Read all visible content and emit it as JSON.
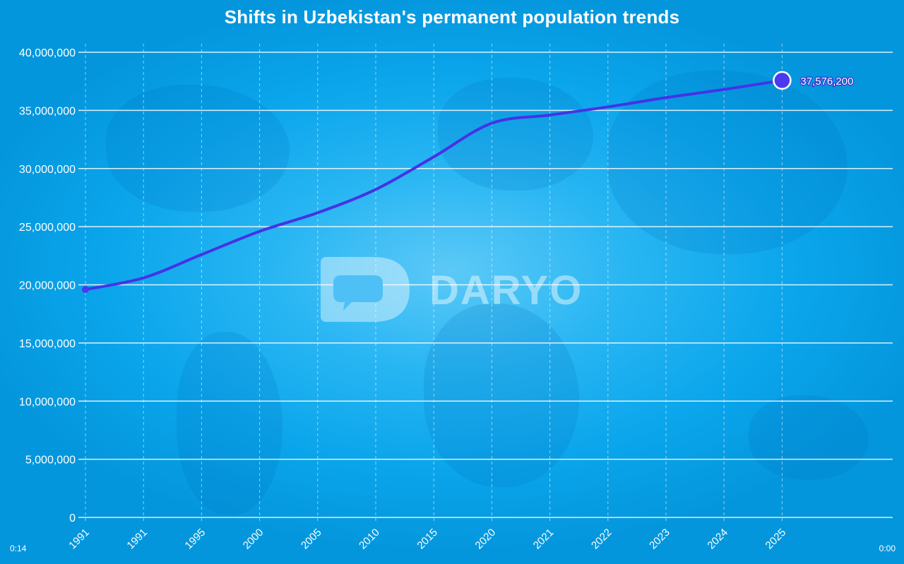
{
  "chart_data": {
    "type": "line",
    "title": "Shifts in Uzbekistan's permanent population trends",
    "xlabel": "",
    "ylabel": "",
    "categories": [
      "1991",
      "1991",
      "1995",
      "2000",
      "2005",
      "2010",
      "2015",
      "2020",
      "2021",
      "2022",
      "2023",
      "2024",
      "2025"
    ],
    "series": [
      {
        "values": [
          19600000,
          20600000,
          22600000,
          24600000,
          26200000,
          28200000,
          31000000,
          33900000,
          34600000,
          35300000,
          36100000,
          36800000,
          37576200
        ]
      }
    ],
    "ylim": [
      0,
      40000000
    ],
    "yticks": [
      "0",
      "5,000,000",
      "10,000,000",
      "15,000,000",
      "20,000,000",
      "25,000,000",
      "30,000,000",
      "35,000,000",
      "40,000,000"
    ],
    "annotation": {
      "label": "37,576,200",
      "category_index": 12
    },
    "grid": true,
    "legend": "none",
    "line_color": "#4433e6",
    "marker_color": "#4a3aef"
  },
  "watermark": {
    "text": "DARYO"
  },
  "video": {
    "elapsed": "0:14",
    "remaining": "0:00"
  }
}
